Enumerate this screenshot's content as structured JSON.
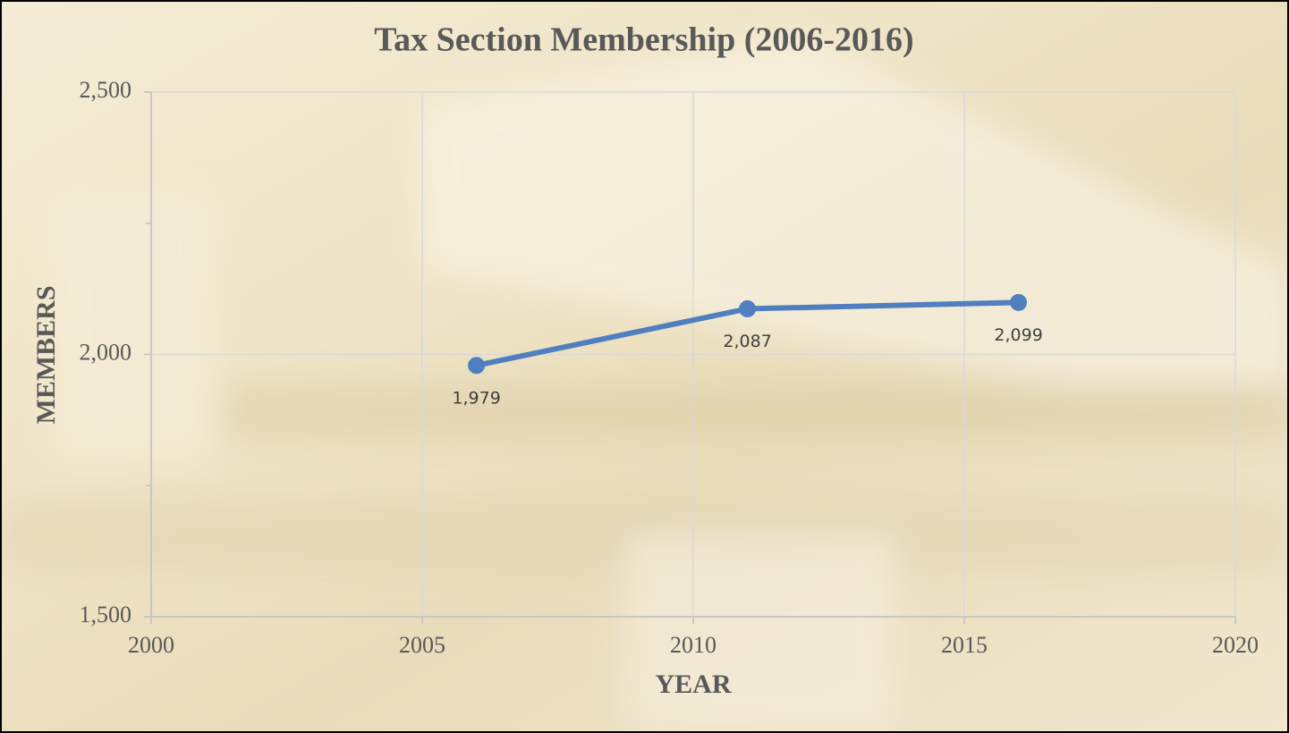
{
  "chart_data": {
    "type": "line",
    "title": "Tax Section Membership (2006-2016)",
    "x_label": "YEAR",
    "y_label": "MEMBERS",
    "x": [
      2006,
      2011,
      2016
    ],
    "series": [
      {
        "name": "Members",
        "color": "#4f7fbe",
        "values": [
          1979,
          2087,
          2099
        ],
        "value_labels": [
          "1,979",
          "2,087",
          "2,099"
        ]
      }
    ],
    "xlim": [
      2000,
      2020
    ],
    "xticks": [
      2000,
      2005,
      2010,
      2015,
      2020
    ],
    "ylim": [
      1500,
      2500
    ],
    "yticks": [
      {
        "value": 1500,
        "label": "1,500"
      },
      {
        "value": 2000,
        "label": "2,000"
      },
      {
        "value": 2500,
        "label": "2,500"
      }
    ],
    "yminorticks": [
      1750,
      2250
    ],
    "grid": true
  }
}
